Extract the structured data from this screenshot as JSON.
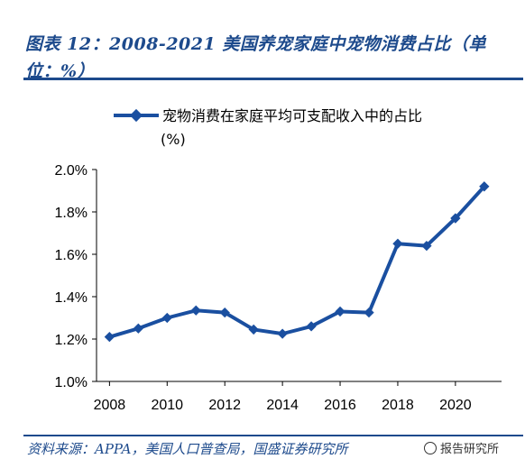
{
  "header": {
    "title": "图表 12：2008-2021 美国养宠家庭中宠物消费占比（单位：%）"
  },
  "footer": {
    "source": "资料来源：APPA，美国人口普查局，国盛证券研究所",
    "watermark": "报告研究所"
  },
  "colors": {
    "brand": "#1d4a8c",
    "series": "#1a4fa0"
  },
  "chart_data": {
    "type": "line",
    "title": "",
    "xlabel": "",
    "ylabel": "",
    "series": [
      {
        "name": "宠物消费在家庭平均可支配收入中的占比(%)",
        "x": [
          2008,
          2009,
          2010,
          2011,
          2012,
          2013,
          2014,
          2015,
          2016,
          2017,
          2018,
          2019,
          2020,
          2021
        ],
        "values": [
          1.21,
          1.25,
          1.3,
          1.335,
          1.325,
          1.245,
          1.225,
          1.26,
          1.33,
          1.325,
          1.65,
          1.64,
          1.77,
          1.92
        ]
      }
    ],
    "xticks": [
      "2008",
      "2010",
      "2012",
      "2014",
      "2016",
      "2018",
      "2020"
    ],
    "yticks": [
      "1.0%",
      "1.2%",
      "1.4%",
      "1.6%",
      "1.8%",
      "2.0%"
    ],
    "xlim": [
      2008,
      2021
    ],
    "ylim": [
      1.0,
      2.0
    ],
    "grid": false,
    "legend_position": "top",
    "marker": "diamond"
  }
}
